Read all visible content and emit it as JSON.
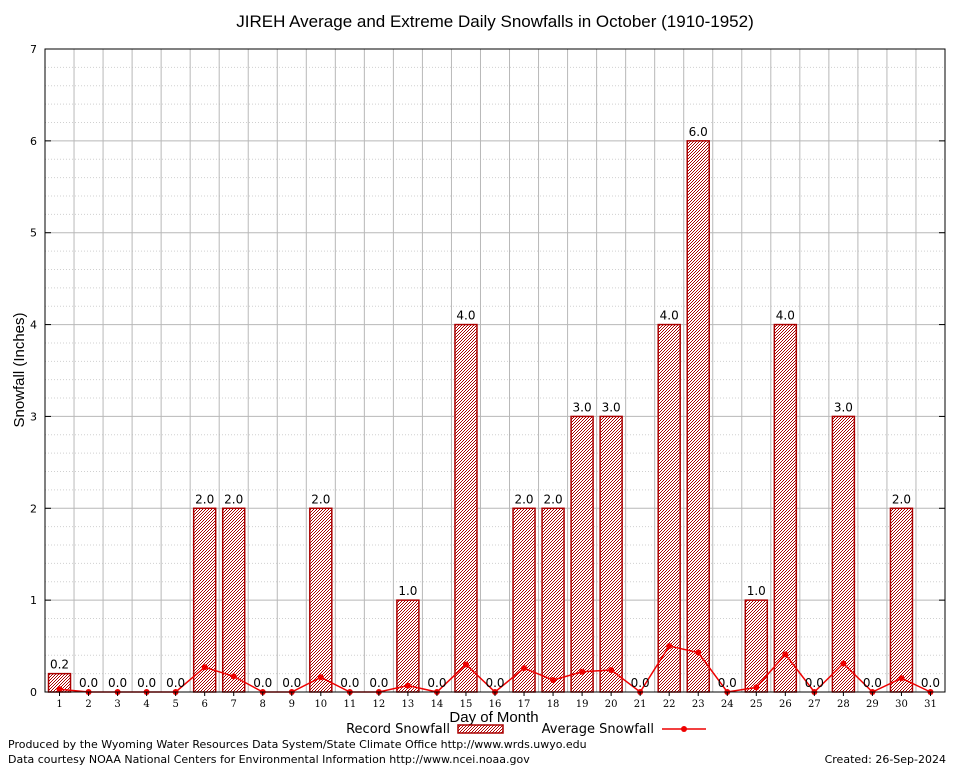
{
  "chart_data": {
    "type": "bar",
    "title": "JIREH Average and Extreme Daily Snowfalls in October (1910-1952)",
    "xlabel": "Day of Month",
    "ylabel": "Snowfall (Inches)",
    "ylim": [
      0,
      7
    ],
    "yticks": [
      0,
      1,
      2,
      3,
      4,
      5,
      6,
      7
    ],
    "grid": true,
    "legend_position": "bottom",
    "categories": [
      "1",
      "2",
      "3",
      "4",
      "5",
      "6",
      "7",
      "8",
      "9",
      "10",
      "11",
      "12",
      "13",
      "14",
      "15",
      "16",
      "17",
      "18",
      "19",
      "20",
      "21",
      "22",
      "23",
      "24",
      "25",
      "26",
      "27",
      "28",
      "29",
      "30",
      "31"
    ],
    "series": [
      {
        "name": "Record Snowfall",
        "kind": "bar",
        "values": [
          0.2,
          0,
          0,
          0,
          0,
          2,
          2,
          0,
          0,
          2,
          0,
          0,
          1,
          0,
          4,
          0,
          2,
          2,
          3,
          3,
          0,
          4,
          6,
          0,
          1,
          4,
          0,
          3,
          0,
          2,
          0
        ],
        "labels": [
          "0.2",
          "0.0",
          "0.0",
          "0.0",
          "0.0",
          "2.0",
          "2.0",
          "0.0",
          "0.0",
          "2.0",
          "0.0",
          "0.0",
          "1.0",
          "0.0",
          "4.0",
          "0.0",
          "2.0",
          "2.0",
          "3.0",
          "3.0",
          "0.0",
          "4.0",
          "6.0",
          "0.0",
          "1.0",
          "4.0",
          "0.0",
          "3.0",
          "0.0",
          "2.0",
          "0.0"
        ]
      },
      {
        "name": "Average Snowfall",
        "kind": "line",
        "values": [
          0.03,
          0,
          0,
          0,
          0,
          0.27,
          0.17,
          0,
          0,
          0.16,
          0,
          0,
          0.07,
          0,
          0.3,
          0,
          0.26,
          0.13,
          0.22,
          0.24,
          0,
          0.5,
          0.43,
          0,
          0.05,
          0.41,
          0,
          0.31,
          0,
          0.15,
          0
        ]
      }
    ],
    "colors": {
      "bar_edge": "#aa0000",
      "bar_fill": "#c9a0a0",
      "line": "#ee0000",
      "grid": "#b8b8b8"
    }
  },
  "footer": {
    "produced_by": "Produced by the Wyoming Water Resources Data System/State Climate Office http://www.wrds.uwyo.edu",
    "data_courtesy": "Data courtesy NOAA National Centers for Environmental Information http://www.ncei.noaa.gov",
    "created": "Created:  26-Sep-2024"
  }
}
